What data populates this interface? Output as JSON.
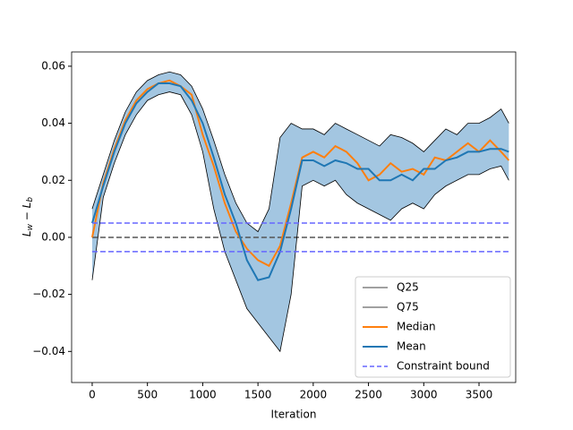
{
  "chart_data": {
    "type": "line",
    "x_label": "Iteration",
    "y_label": [
      "L",
      "w",
      " − ",
      "L",
      "b"
    ],
    "x": [
      0,
      100,
      200,
      300,
      400,
      500,
      600,
      700,
      800,
      900,
      1000,
      1100,
      1200,
      1300,
      1400,
      1500,
      1600,
      1700,
      1800,
      1900,
      2000,
      2100,
      2200,
      2300,
      2400,
      2500,
      2600,
      2700,
      2800,
      2900,
      3000,
      3100,
      3200,
      3300,
      3400,
      3500,
      3600,
      3700,
      3770
    ],
    "series": [
      {
        "name": "Q25",
        "color": "#000000",
        "width": 0.8,
        "values": [
          -0.015,
          0.014,
          0.026,
          0.036,
          0.043,
          0.048,
          0.05,
          0.051,
          0.05,
          0.043,
          0.03,
          0.01,
          -0.005,
          -0.015,
          -0.025,
          -0.03,
          -0.035,
          -0.04,
          -0.02,
          0.018,
          0.02,
          0.018,
          0.02,
          0.015,
          0.012,
          0.01,
          0.008,
          0.006,
          0.01,
          0.012,
          0.01,
          0.015,
          0.018,
          0.02,
          0.022,
          0.022,
          0.024,
          0.025,
          0.02
        ]
      },
      {
        "name": "Q75",
        "color": "#000000",
        "width": 0.8,
        "values": [
          0.01,
          0.022,
          0.034,
          0.044,
          0.051,
          0.055,
          0.057,
          0.058,
          0.057,
          0.053,
          0.045,
          0.034,
          0.022,
          0.012,
          0.005,
          0.002,
          0.01,
          0.035,
          0.04,
          0.038,
          0.038,
          0.036,
          0.04,
          0.038,
          0.036,
          0.034,
          0.032,
          0.036,
          0.035,
          0.033,
          0.03,
          0.034,
          0.038,
          0.036,
          0.04,
          0.04,
          0.042,
          0.045,
          0.04
        ]
      },
      {
        "name": "Median",
        "color": "#ff7f0e",
        "width": 2,
        "values": [
          0.0,
          0.019,
          0.031,
          0.041,
          0.048,
          0.052,
          0.054,
          0.055,
          0.053,
          0.05,
          0.036,
          0.025,
          0.012,
          0.002,
          -0.004,
          -0.008,
          -0.01,
          -0.003,
          0.012,
          0.028,
          0.03,
          0.028,
          0.032,
          0.03,
          0.026,
          0.02,
          0.022,
          0.026,
          0.023,
          0.024,
          0.022,
          0.028,
          0.027,
          0.03,
          0.033,
          0.03,
          0.034,
          0.03,
          0.027
        ]
      },
      {
        "name": "Mean",
        "color": "#1f77b4",
        "width": 2,
        "values": [
          0.005,
          0.018,
          0.03,
          0.04,
          0.047,
          0.051,
          0.054,
          0.054,
          0.053,
          0.048,
          0.04,
          0.028,
          0.015,
          0.005,
          -0.008,
          -0.015,
          -0.014,
          -0.005,
          0.01,
          0.027,
          0.027,
          0.025,
          0.027,
          0.026,
          0.024,
          0.024,
          0.02,
          0.02,
          0.022,
          0.02,
          0.024,
          0.024,
          0.027,
          0.028,
          0.03,
          0.03,
          0.031,
          0.031,
          0.03
        ]
      }
    ],
    "band_color": "#a3c6e1",
    "reference_line": {
      "value": 0,
      "color": "#555555"
    },
    "constraint_bound": {
      "name": "Constraint bound",
      "color": "#6666ff",
      "values": [
        0.005,
        -0.005
      ]
    },
    "xlim": [
      -186,
      3832
    ],
    "ylim": [
      -0.0509,
      0.065
    ],
    "xticks": [
      0,
      500,
      1000,
      1500,
      2000,
      2500,
      3000,
      3500
    ],
    "yticks": [
      {
        "value": -0.04,
        "label": "−0.04"
      },
      {
        "value": -0.02,
        "label": "−0.02"
      },
      {
        "value": 0,
        "label": "0.00"
      },
      {
        "value": 0.02,
        "label": "0.02"
      },
      {
        "value": 0.04,
        "label": "0.04"
      },
      {
        "value": 0.06,
        "label": "0.06"
      }
    ],
    "legend": "lower right"
  }
}
